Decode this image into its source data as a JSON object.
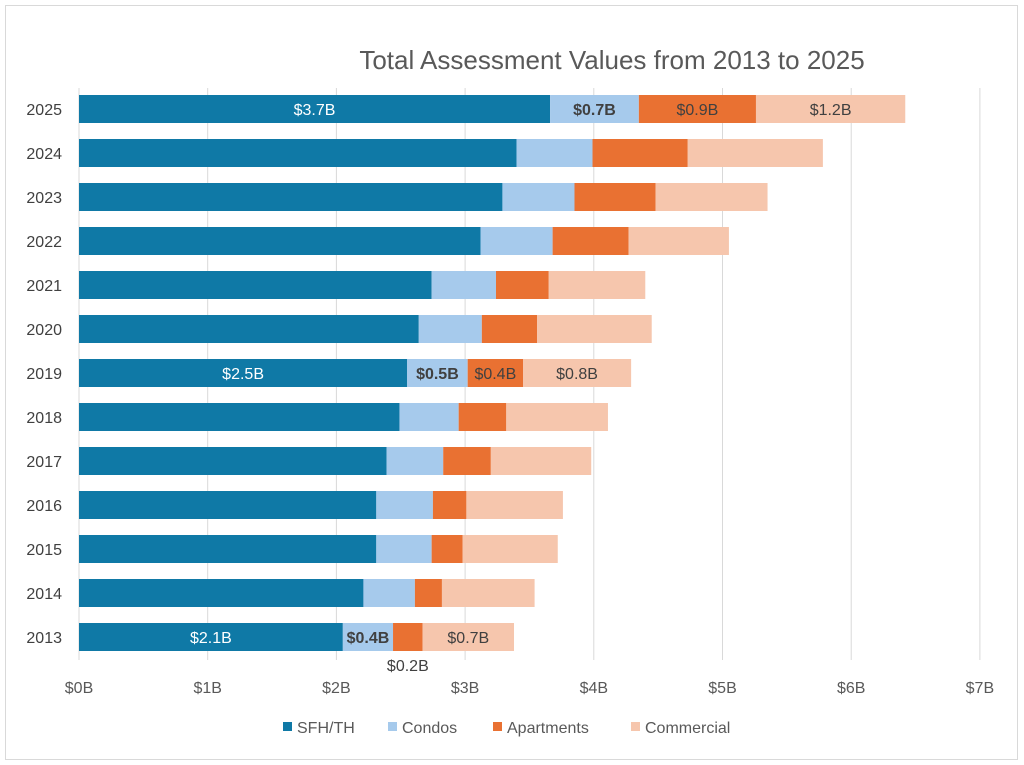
{
  "chart_data": {
    "type": "bar",
    "orientation": "horizontal",
    "stacked": true,
    "title": "Total Assessment Values from 2013 to 2025",
    "xlabel": "",
    "ylabel": "",
    "xlim": [
      0,
      7
    ],
    "x_ticks": [
      "$0B",
      "$1B",
      "$2B",
      "$3B",
      "$4B",
      "$5B",
      "$6B",
      "$7B"
    ],
    "grid": "vertical",
    "legend_position": "bottom",
    "categories": [
      "2025",
      "2024",
      "2023",
      "2022",
      "2021",
      "2020",
      "2019",
      "2018",
      "2017",
      "2016",
      "2015",
      "2014",
      "2013"
    ],
    "series": [
      {
        "name": "SFH/TH",
        "color": "#0f79a6",
        "values": [
          3.66,
          3.4,
          3.29,
          3.12,
          2.74,
          2.64,
          2.55,
          2.49,
          2.39,
          2.31,
          2.31,
          2.21,
          2.05
        ]
      },
      {
        "name": "Condos",
        "color": "#a6caec",
        "values": [
          0.69,
          0.59,
          0.56,
          0.56,
          0.5,
          0.49,
          0.47,
          0.46,
          0.44,
          0.44,
          0.43,
          0.4,
          0.39
        ]
      },
      {
        "name": "Apartments",
        "color": "#e97132",
        "values": [
          0.91,
          0.74,
          0.63,
          0.59,
          0.41,
          0.43,
          0.43,
          0.37,
          0.37,
          0.26,
          0.24,
          0.21,
          0.23
        ]
      },
      {
        "name": "Commercial",
        "color": "#f6c6ad",
        "values": [
          1.16,
          1.05,
          0.87,
          0.78,
          0.75,
          0.89,
          0.84,
          0.79,
          0.78,
          0.75,
          0.74,
          0.72,
          0.71
        ]
      }
    ],
    "data_labels": [
      {
        "category": "2025",
        "labels": [
          "$3.7B",
          "$0.7B",
          "$0.9B",
          "$1.2B"
        ]
      },
      {
        "category": "2019",
        "labels": [
          "$2.5B",
          "$0.5B",
          "$0.4B",
          "$0.8B"
        ]
      },
      {
        "category": "2013",
        "labels": [
          "$2.1B",
          "$0.4B",
          "$0.2B",
          "$0.7B"
        ]
      }
    ]
  }
}
